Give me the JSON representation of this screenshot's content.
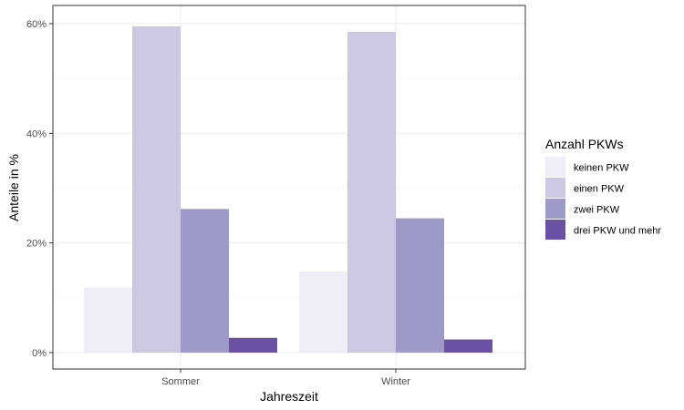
{
  "chart_data": {
    "type": "bar",
    "title": "",
    "xlabel": "Jahreszeit",
    "ylabel": "Anteile in %",
    "categories": [
      "Sommer",
      "Winter"
    ],
    "series": [
      {
        "name": "keinen PKW",
        "values": [
          11.9,
          14.8
        ],
        "color": "#efedf5"
      },
      {
        "name": "einen PKW",
        "values": [
          59.5,
          58.5
        ],
        "color": "#cbc9e2"
      },
      {
        "name": "zwei PKW",
        "values": [
          26.2,
          24.5
        ],
        "color": "#9e9ac8"
      },
      {
        "name": "drei PKW und mehr",
        "values": [
          2.7,
          2.4
        ],
        "color": "#6a51a3"
      }
    ],
    "ylim": [
      0,
      62.5
    ],
    "yticks": [
      0,
      20,
      40,
      60
    ],
    "ytick_labels": [
      "0%",
      "20%",
      "40%",
      "60%"
    ],
    "legend_title": "Anzahl PKWs",
    "legend_position": "right",
    "grid": true
  }
}
